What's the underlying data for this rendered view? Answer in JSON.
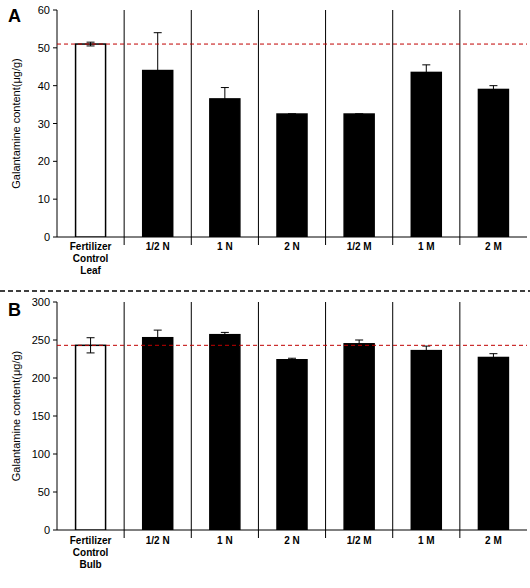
{
  "chart_data": [
    {
      "type": "bar",
      "title": "A",
      "y_label": "Galantamine content(μg/g)",
      "categories": [
        "Fertilizer\nControl\nLeaf",
        "1/2 N",
        "1 N",
        "2 N",
        "1/2 M",
        "1 M",
        "2 M"
      ],
      "values": [
        51,
        44,
        36.5,
        32.5,
        32.5,
        43.5,
        39
      ],
      "errors": [
        0.5,
        10,
        3,
        0,
        0,
        2,
        1
      ],
      "colors": [
        "#ffffff",
        "#000000",
        "#000000",
        "#000000",
        "#000000",
        "#000000",
        "#000000"
      ],
      "reference_line": 51,
      "ylim": [
        0,
        60
      ],
      "yticks": [
        0,
        10,
        20,
        30,
        40,
        50,
        60
      ],
      "grid": false
    },
    {
      "type": "bar",
      "title": "B",
      "y_label": "Galantamine content(μg/g)",
      "categories": [
        "Fertilizer\nControl\nBulb",
        "1/2 N",
        "1 N",
        "2 N",
        "1/2 M",
        "1 M",
        "2 M"
      ],
      "values": [
        243,
        253,
        257,
        224,
        245,
        236,
        227
      ],
      "errors": [
        10,
        10,
        3,
        2,
        5,
        6,
        5
      ],
      "colors": [
        "#ffffff",
        "#000000",
        "#000000",
        "#000000",
        "#000000",
        "#000000",
        "#000000"
      ],
      "reference_line": 243,
      "ylim": [
        0,
        300
      ],
      "yticks": [
        0,
        50,
        100,
        150,
        200,
        250,
        300
      ],
      "grid": false
    }
  ]
}
